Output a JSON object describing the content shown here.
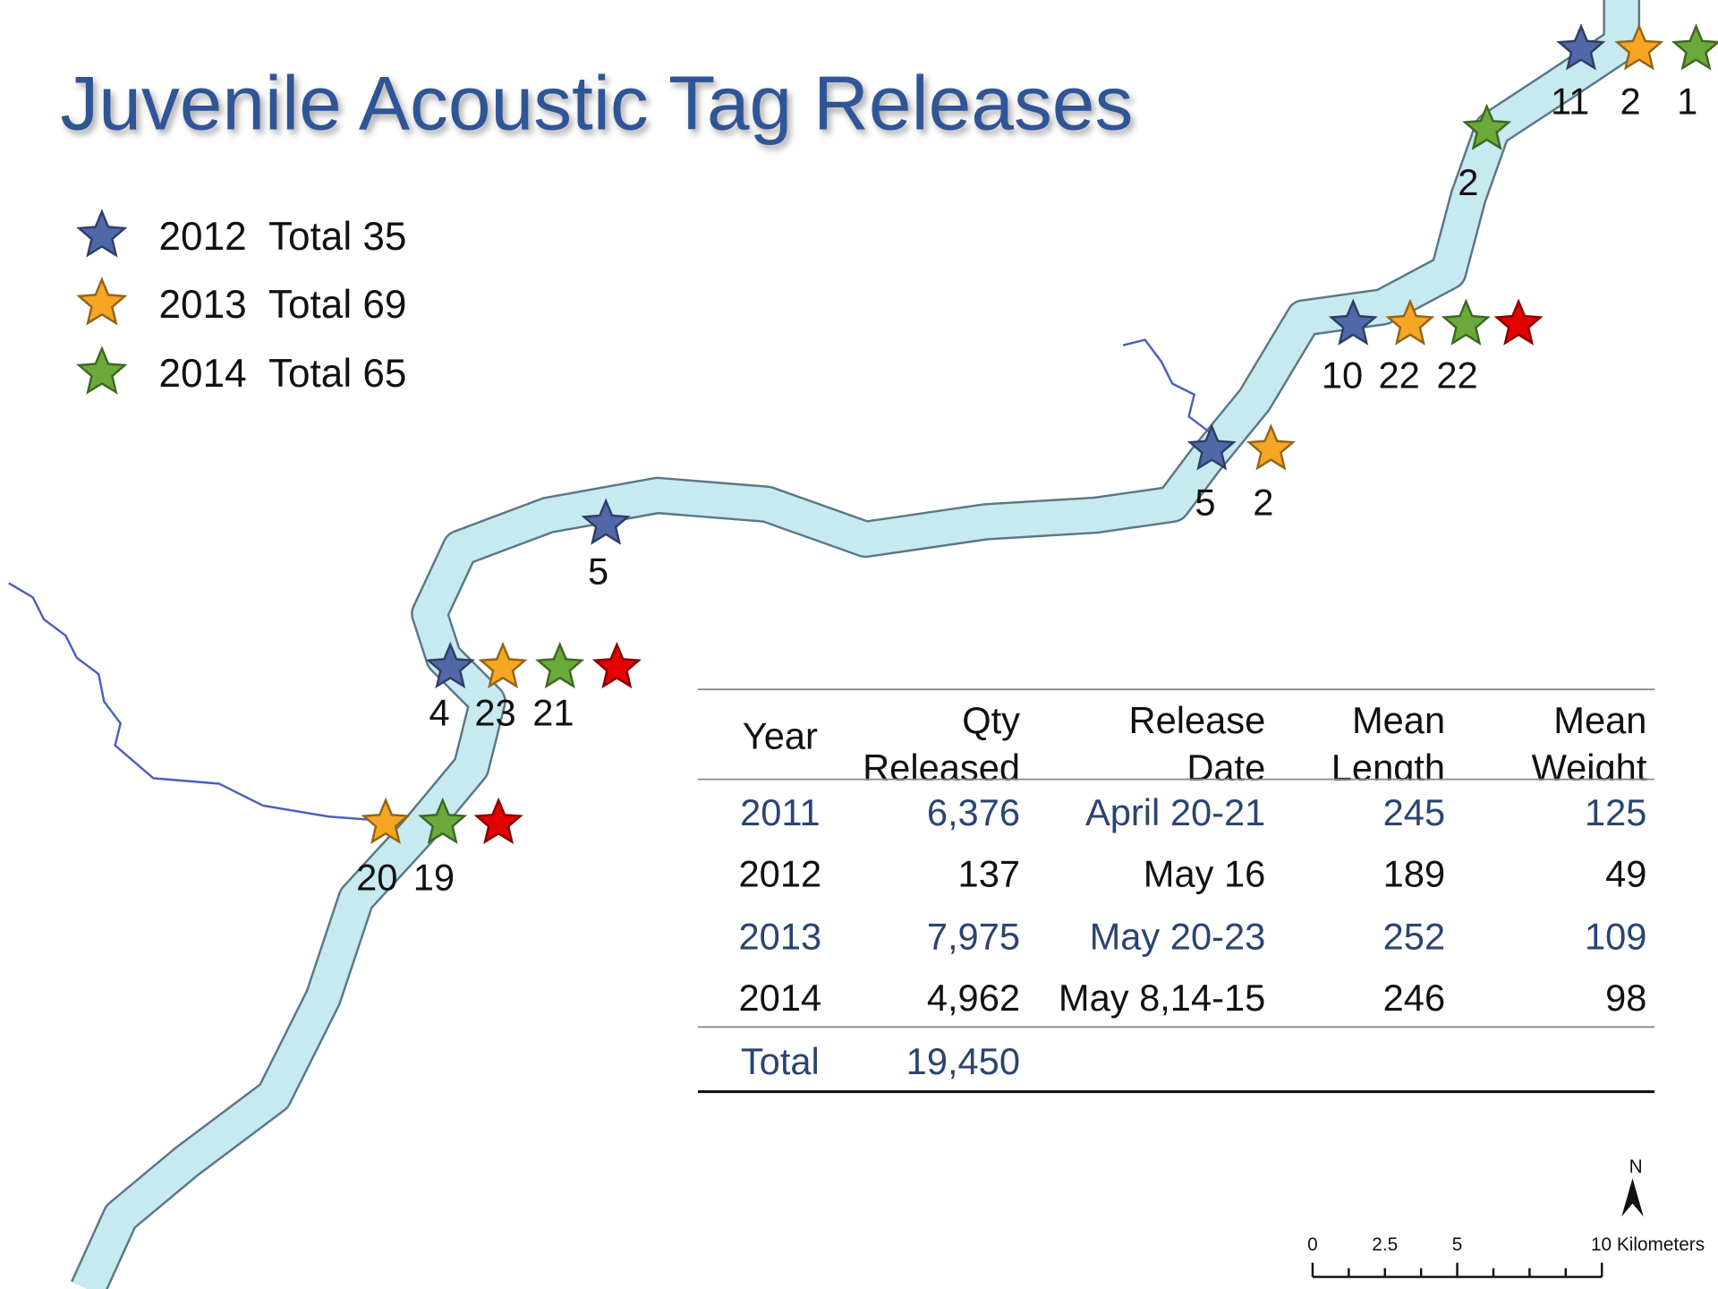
{
  "title": "Juvenile Acoustic Tag Releases",
  "legend": [
    {
      "year": "2012",
      "total": "Total 35",
      "color": "#5068a8"
    },
    {
      "year": "2013",
      "total": "Total 69",
      "color": "#f5a623"
    },
    {
      "year": "2014",
      "total": "Total 65",
      "color": "#6aaa3a"
    }
  ],
  "extra_marker_color": "#e30000",
  "sites": [
    {
      "markers": [
        "2012",
        "2013",
        "2014"
      ],
      "labels": [
        11,
        2,
        1
      ]
    },
    {
      "markers": [
        "2014"
      ],
      "labels": [
        2
      ]
    },
    {
      "markers": [
        "2012",
        "2013",
        "2014",
        "extra"
      ],
      "labels": [
        10,
        22,
        22
      ]
    },
    {
      "markers": [
        "2012",
        "2013"
      ],
      "labels": [
        5,
        2
      ]
    },
    {
      "markers": [
        "2012"
      ],
      "labels": [
        5
      ]
    },
    {
      "markers": [
        "2012",
        "2013",
        "2014",
        "extra"
      ],
      "labels": [
        4,
        23,
        21
      ]
    },
    {
      "markers": [
        "2013",
        "2014",
        "extra"
      ],
      "labels": [
        20,
        19
      ]
    }
  ],
  "table": {
    "header": [
      [
        "Year"
      ],
      [
        "Qty",
        "Released"
      ],
      [
        "Release",
        "Date"
      ],
      [
        "Mean",
        "Length"
      ],
      [
        "Mean",
        "Weight"
      ]
    ],
    "rows": [
      [
        "2011",
        "6,376",
        "April 20-21",
        "245",
        "125"
      ],
      [
        "2012",
        "137",
        "May 16",
        "189",
        "49"
      ],
      [
        "2013",
        "7,975",
        "May 20-23",
        "252",
        "109"
      ],
      [
        "2014",
        "4,962",
        "May 8,14-15",
        "246",
        "98"
      ]
    ],
    "total": [
      "Total",
      "19,450"
    ]
  },
  "scale_bar": {
    "labels": [
      "0",
      "2.5",
      "5",
      "10 Kilometers"
    ],
    "north": "N"
  }
}
